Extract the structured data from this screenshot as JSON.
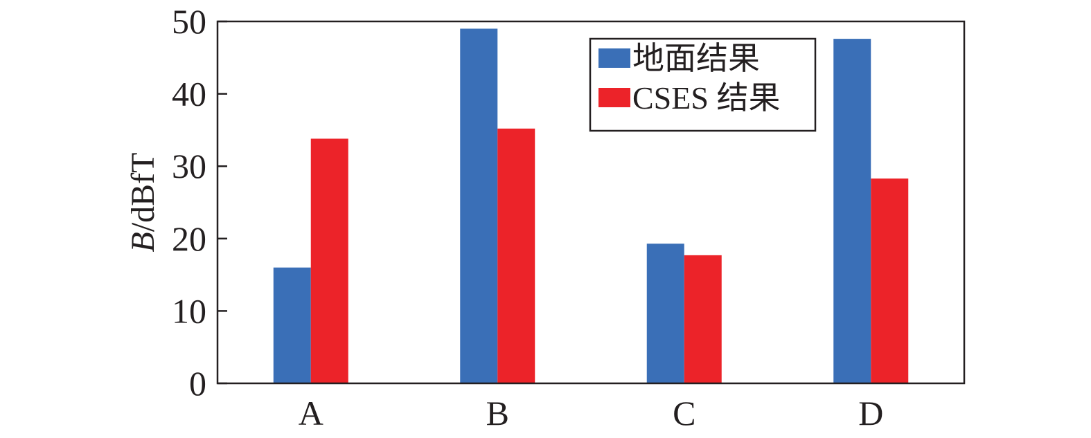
{
  "chart_data": {
    "type": "bar",
    "categories": [
      "A",
      "B",
      "C",
      "D"
    ],
    "series": [
      {
        "name": "地面结果",
        "color": "#3a6fb7",
        "values": [
          16,
          49,
          19.3,
          47.6
        ]
      },
      {
        "name": "CSES 结果",
        "color": "#ec2329",
        "values": [
          33.8,
          35.2,
          17.7,
          28.3
        ]
      }
    ],
    "ylabel": {
      "italic": "B",
      "rest": "/dBfT"
    },
    "xlabel": "",
    "ylim": [
      0,
      50
    ],
    "yticks": [
      "0",
      "10",
      "20",
      "30",
      "40",
      "50"
    ],
    "grid": false,
    "legend_position": "top-right"
  }
}
